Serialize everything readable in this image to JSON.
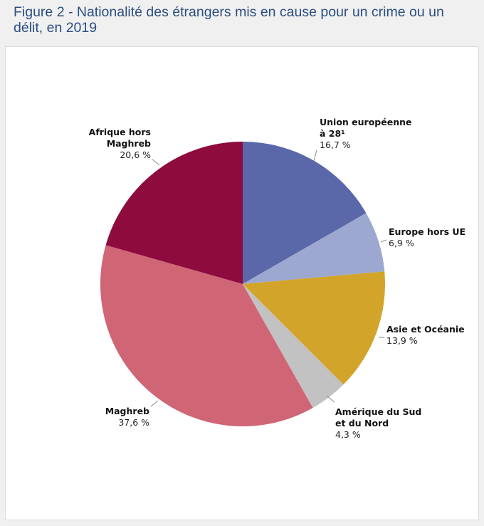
{
  "title": "Figure 2 - Nationalité des étrangers mis en cause pour un crime ou un délit, en 2019",
  "chart_data": {
    "type": "pie",
    "title": "Figure 2 - Nationalité des étrangers mis en cause pour un crime ou un délit, en 2019",
    "slices": [
      {
        "label_lines": [
          "Union européenne",
          "à 28¹"
        ],
        "value": 16.7,
        "value_label": "16,7 %",
        "color": "#5a68a9"
      },
      {
        "label_lines": [
          "Europe hors UE"
        ],
        "value": 6.9,
        "value_label": "6,9 %",
        "color": "#9ca8cf"
      },
      {
        "label_lines": [
          "Asie et Océanie"
        ],
        "value": 13.9,
        "value_label": "13,9 %",
        "color": "#d3a42a"
      },
      {
        "label_lines": [
          "Amérique du Sud",
          "et du Nord"
        ],
        "value": 4.3,
        "value_label": "4,3 %",
        "color": "#c2c2c2"
      },
      {
        "label_lines": [
          "Maghreb"
        ],
        "value": 37.6,
        "value_label": "37,6 %",
        "color": "#d06576"
      },
      {
        "label_lines": [
          "Afrique hors",
          "Maghreb"
        ],
        "value": 20.6,
        "value_label": "20,6 %",
        "color": "#8d0b3d"
      }
    ],
    "start": "12 o'clock",
    "direction": "clockwise",
    "legend": "none (direct labels)"
  }
}
